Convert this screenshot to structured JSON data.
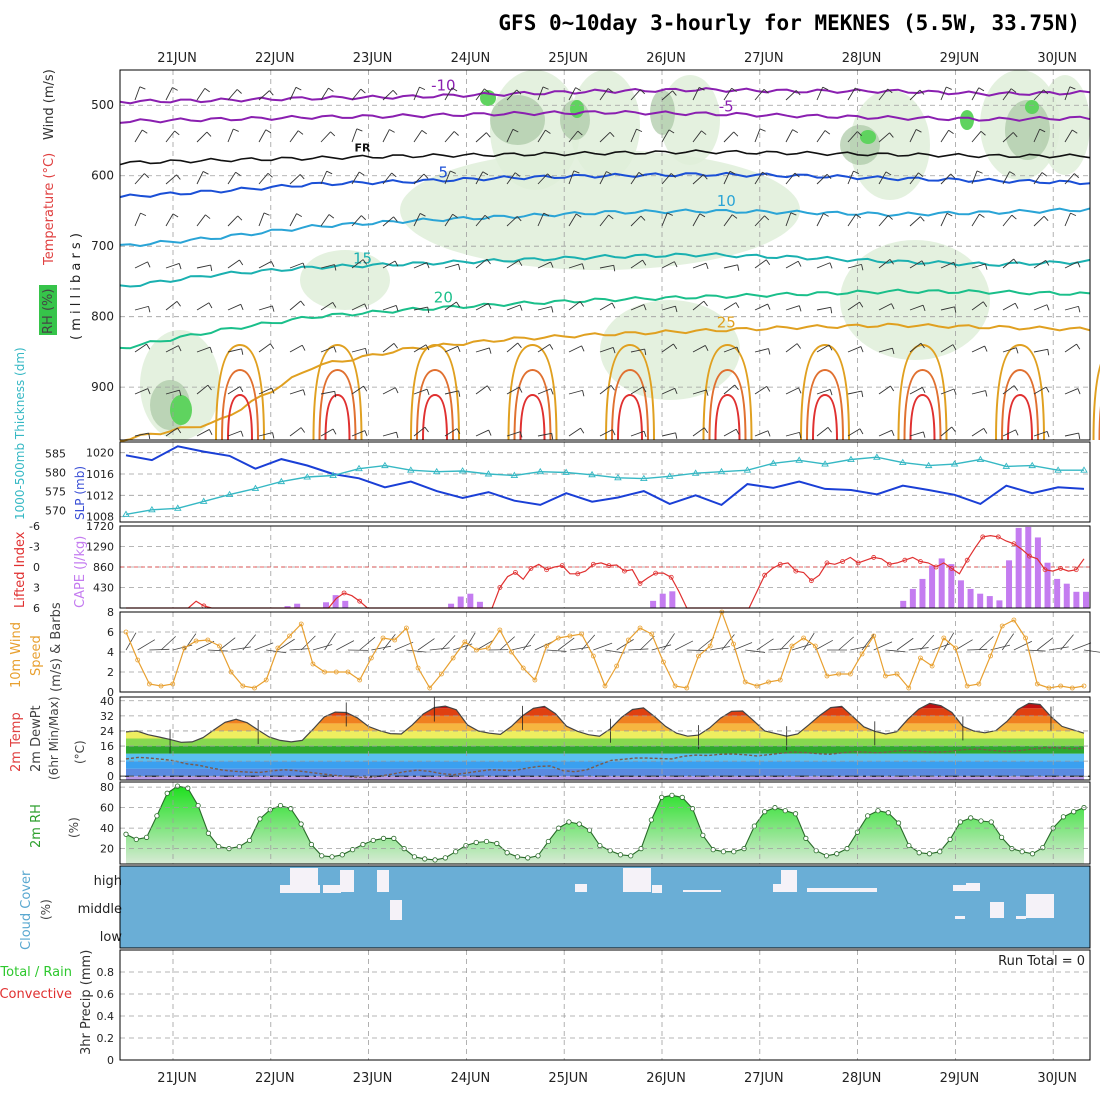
{
  "title": "GFS 0~10day 3-hourly for MEKNES (5.5W, 33.75N)",
  "dates": [
    "21JUN",
    "22JUN",
    "23JUN",
    "24JUN",
    "25JUN",
    "26JUN",
    "27JUN",
    "28JUN",
    "29JUN",
    "30JUN"
  ],
  "colors": {
    "frame": "#000000",
    "grid": "#9e9e9e",
    "cape_bar": "#c47cf0",
    "lifted_line": "#e03030",
    "slp_line": "#1a3fd6",
    "thickness_line": "#36b8c4",
    "wind_line": "#e8a030",
    "rh_fill": "#2ec82e",
    "cloud_bg": "#6aaed6",
    "cloud_white": "#f5f2f8"
  },
  "labels": {
    "rh_key": "RH (%)",
    "temperature": "Temperature (°C)",
    "wind": "Wind (m/s)",
    "pressure": "( m i l l i b a r s )",
    "thickness": "1000-500mb Thickness (dm)",
    "slp": "SLP (mb)",
    "lifted": "Lifted Index",
    "cape": "CAPE (J/kg)",
    "wind10_a": "10m Wind",
    "wind10_b": "Speed",
    "wind10_c": "(m/s) & Barbs",
    "temp_a": "2m Temp",
    "temp_b": "2m DewPt",
    "temp_c": "(6hr Min/Max)",
    "temp_unit": "(°C)",
    "rh2m": "2m RH",
    "rh2m_unit": "(%)",
    "cloud": "Cloud Cover",
    "cloud_unit": "(%)",
    "precip_a": "Total / Rain",
    "precip_b": "Convective",
    "precip_c": "3hr Precip (mm)",
    "run_total": "Run Total = 0"
  },
  "chart_data": [
    {
      "type": "contour",
      "panel": "upper-air",
      "yaxis": "Pressure (millibars)",
      "yticks": [
        500,
        600,
        700,
        800,
        900
      ],
      "ylim": [
        450,
        975
      ],
      "isotherm_labels": [
        "-10",
        "-5",
        "FR",
        "5",
        "10",
        "15",
        "20",
        "25"
      ],
      "isotherms": [
        {
          "label": "-10",
          "p": [
            495,
            493,
            490,
            488,
            484,
            480,
            478,
            480,
            480,
            484,
            482
          ]
        },
        {
          "label": "-5",
          "p": [
            523,
            520,
            517,
            515,
            512,
            510,
            512,
            515,
            518,
            520,
            518
          ]
        },
        {
          "label": "FR",
          "p": [
            582,
            578,
            575,
            572,
            570,
            568,
            566,
            568,
            570,
            572,
            572
          ]
        },
        {
          "label": "5",
          "p": [
            630,
            622,
            612,
            608,
            603,
            600,
            598,
            600,
            604,
            607,
            610
          ]
        },
        {
          "label": "10",
          "p": [
            700,
            688,
            672,
            664,
            658,
            652,
            650,
            652,
            655,
            652,
            648
          ]
        },
        {
          "label": "15",
          "p": [
            758,
            740,
            730,
            725,
            720,
            715,
            712,
            716,
            722,
            726,
            722
          ]
        },
        {
          "label": "20",
          "p": [
            845,
            820,
            800,
            790,
            782,
            776,
            772,
            768,
            764,
            765,
            768
          ]
        },
        {
          "label": "25",
          "p": [
            975,
            950,
            870,
            845,
            832,
            825,
            820,
            815,
            812,
            815,
            818
          ]
        }
      ]
    },
    {
      "type": "line",
      "panel": "slp-thickness",
      "series": [
        {
          "name": "SLP (mb)",
          "axis": "right",
          "yticks": [
            1008,
            1012,
            1016,
            1020
          ],
          "values": [
            1019.5,
            1018.6,
            1021.2,
            1020.2,
            1019.4,
            1017.0,
            1018.8,
            1017.6,
            1016.0,
            1015.2,
            1013.5,
            1014.6,
            1012.8,
            1011.5,
            1012.6,
            1011.0,
            1010.2,
            1012.4,
            1010.8,
            1011.6,
            1012.8,
            1010.4,
            1012.0,
            1010.2,
            1014.1,
            1013.4,
            1014.6,
            1013.2,
            1013.0,
            1012.2,
            1013.8,
            1013.0,
            1012.1,
            1010.4,
            1013.8,
            1012.4,
            1013.5,
            1013.2
          ]
        },
        {
          "name": "1000-500mb Thickness (dm)",
          "axis": "left",
          "yticks": [
            570,
            575,
            580,
            585
          ],
          "values": [
            569.0,
            570.2,
            570.6,
            572.4,
            574.2,
            575.8,
            577.6,
            578.8,
            579.2,
            581.0,
            581.8,
            580.6,
            580.2,
            580.4,
            579.6,
            579.2,
            580.2,
            580.0,
            579.4,
            578.6,
            578.4,
            579.0,
            579.8,
            580.2,
            580.6,
            582.4,
            583.2,
            582.2,
            583.4,
            584.0,
            582.6,
            581.8,
            582.2,
            583.4,
            581.6,
            581.8,
            580.6,
            580.6
          ]
        }
      ]
    },
    {
      "type": "bar",
      "panel": "cape-lifted",
      "cape_ticks": [
        430,
        860,
        1290,
        1720
      ],
      "lifted_ticks": [
        "-6",
        "-3",
        "0",
        "3",
        "6"
      ],
      "cape": [
        0,
        0,
        0,
        0,
        0,
        0,
        0,
        0,
        0,
        0,
        0,
        0,
        0,
        0,
        0,
        0,
        0,
        40,
        90,
        0,
        0,
        120,
        270,
        150,
        0,
        0,
        0,
        0,
        0,
        0,
        0,
        0,
        0,
        0,
        90,
        240,
        300,
        130,
        0,
        0,
        0,
        0,
        0,
        0,
        0,
        0,
        0,
        0,
        0,
        0,
        0,
        0,
        0,
        0,
        0,
        150,
        300,
        350,
        0,
        0,
        0,
        0,
        0,
        0,
        0,
        0,
        0,
        0,
        0,
        0,
        0,
        0,
        0,
        0,
        0,
        0,
        0,
        0,
        0,
        0,
        0,
        150,
        400,
        610,
        890,
        1040,
        920,
        580,
        400,
        300,
        250,
        160,
        1000,
        1680,
        1700,
        1480,
        950,
        610,
        510,
        340,
        340
      ],
      "lifted": [
        6,
        6,
        6,
        6,
        6,
        6,
        6,
        6,
        6,
        5.0,
        5.7,
        6,
        6,
        6,
        6,
        6,
        6,
        6,
        6,
        6,
        6,
        6,
        6,
        6,
        6,
        6,
        6,
        4.6,
        3.8,
        4.2,
        5.0,
        6,
        6,
        6,
        6,
        6,
        6,
        6,
        6,
        6,
        6,
        6,
        6,
        6,
        6,
        6,
        6,
        6,
        3.0,
        1.4,
        0.8,
        1.8,
        0.2,
        -0.4,
        0.4,
        0.0,
        -0.2,
        1.0,
        1.0,
        0.6,
        -0.4,
        -0.6,
        -0.2,
        -0.3,
        0.6,
        0.4,
        2.4,
        1.6,
        0.9,
        0.9,
        1.5,
        3.6,
        6,
        6,
        6,
        6,
        6,
        6,
        6,
        6,
        6,
        3.6,
        1.2,
        0.2,
        -0.4,
        -0.6,
        0.6,
        0.8,
        2.0,
        1.2,
        -0.6,
        -0.4,
        -0.8,
        -1.4,
        -0.6,
        -1.0,
        -1.4,
        -1.2,
        -0.4,
        -0.6,
        -1.0,
        -1.4,
        -0.8,
        -0.6,
        0.0,
        -0.6,
        0.2,
        1.0,
        -1.0,
        -2.8,
        -4.4,
        -4.6,
        -4.4,
        -3.8,
        -3.4,
        -2.6,
        -1.6,
        -1.2,
        0.4,
        0.6,
        0.2,
        0.6,
        0.4,
        -1.2
      ]
    },
    {
      "type": "line",
      "panel": "wind10m",
      "yaxis": "10m Wind Speed (m/s)",
      "yticks": [
        0,
        2,
        4,
        6,
        8
      ],
      "ylim": [
        0,
        8
      ],
      "values": [
        6.0,
        3.2,
        0.8,
        0.6,
        0.8,
        4.4,
        5.1,
        5.2,
        4.6,
        2.0,
        0.6,
        0.4,
        1.2,
        4.4,
        5.6,
        6.8,
        2.8,
        2.0,
        2.0,
        2.0,
        1.2,
        3.4,
        5.4,
        5.2,
        6.4,
        2.4,
        0.4,
        1.8,
        3.4,
        5.0,
        4.2,
        4.4,
        6.2,
        4.0,
        2.4,
        1.2,
        4.6,
        5.4,
        5.6,
        5.8,
        3.6,
        0.6,
        2.6,
        5.2,
        6.4,
        5.8,
        3.0,
        0.6,
        0.4,
        3.6,
        4.6,
        8.0,
        4.8,
        1.0,
        0.6,
        1.0,
        1.2,
        4.6,
        5.4,
        4.6,
        1.6,
        1.8,
        1.8,
        3.8,
        5.6,
        1.6,
        1.8,
        0.4,
        3.4,
        2.6,
        5.4,
        4.4,
        0.6,
        0.8,
        3.6,
        6.6,
        7.2,
        5.4,
        0.8,
        0.4,
        0.6,
        0.4,
        0.6
      ]
    },
    {
      "type": "area",
      "panel": "temperature",
      "yaxis": "2m Temp / DewPt (°C)",
      "yticks": [
        0,
        8,
        16,
        24,
        32,
        40
      ],
      "ylim": [
        -2,
        42
      ],
      "temp": [
        23.5,
        24.0,
        22.0,
        20.8,
        19.5,
        18.0,
        18.2,
        20.5,
        24.6,
        28.6,
        30.2,
        28.4,
        24.5,
        20.8,
        19.0,
        18.2,
        19.0,
        25.0,
        31.4,
        34.0,
        33.8,
        31.0,
        26.4,
        24.2,
        22.6,
        22.4,
        27.2,
        33.0,
        36.4,
        37.2,
        35.2,
        27.2,
        24.0,
        22.8,
        22.2,
        26.4,
        32.0,
        36.0,
        37.0,
        33.2,
        26.5,
        23.8,
        22.0,
        21.2,
        25.2,
        31.2,
        35.4,
        36.2,
        31.6,
        26.4,
        22.8,
        21.2,
        21.8,
        25.6,
        30.8,
        34.4,
        34.6,
        29.4,
        24.0,
        22.6,
        21.2,
        22.4,
        27.2,
        32.2,
        36.4,
        37.0,
        31.6,
        26.2,
        23.8,
        22.4,
        23.6,
        30.2,
        35.6,
        38.6,
        37.4,
        33.8,
        26.4,
        24.0,
        23.0,
        24.2,
        29.0,
        35.4,
        38.6,
        38.0,
        31.6,
        26.4,
        24.6,
        22.8
      ],
      "dewpoint": [
        9.2,
        10.0,
        9.6,
        9.0,
        8.2,
        6.6,
        5.8,
        4.4,
        3.2,
        2.6,
        2.2,
        2.0,
        2.8,
        3.4,
        3.0,
        2.2,
        1.4,
        0.6,
        0.0,
        -0.4,
        -0.8,
        0.2,
        1.2,
        2.4,
        3.2,
        2.6,
        1.4,
        0.8,
        1.6,
        2.6,
        3.4,
        3.2,
        3.0,
        4.2,
        5.2,
        5.4,
        3.0,
        2.4,
        3.4,
        6.0,
        8.4,
        9.0,
        9.6,
        9.6,
        9.4,
        9.2,
        10.6,
        11.2,
        11.0,
        11.6,
        11.8,
        11.4,
        10.8,
        11.4,
        12.2,
        12.8,
        12.6,
        12.0,
        11.6,
        12.4,
        13.0,
        12.8,
        12.4,
        13.0,
        13.6,
        13.4,
        13.0,
        12.8,
        13.2,
        14.0,
        14.4,
        14.0,
        13.4,
        13.2,
        13.8,
        14.6,
        15.2,
        15.0,
        14.6,
        14.8
      ],
      "zero_line": 0
    },
    {
      "type": "area",
      "panel": "rh2m",
      "yaxis": "2m RH (%)",
      "yticks": [
        20,
        40,
        60,
        80
      ],
      "ylim": [
        5,
        85
      ],
      "values": [
        34,
        29,
        31,
        52,
        74,
        81,
        79,
        62,
        35,
        22,
        20,
        22,
        28,
        49,
        58,
        62,
        59,
        44,
        24,
        13,
        12,
        14,
        19,
        24,
        28,
        30,
        30,
        20,
        12,
        10,
        9,
        11,
        17,
        23,
        26,
        27,
        25,
        16,
        12,
        11,
        13,
        27,
        40,
        46,
        44,
        38,
        23,
        18,
        14,
        13,
        20,
        48,
        70,
        72,
        70,
        59,
        33,
        19,
        17,
        17,
        20,
        42,
        56,
        60,
        57,
        54,
        30,
        18,
        13,
        15,
        20,
        36,
        52,
        57,
        55,
        45,
        23,
        16,
        15,
        17,
        29,
        46,
        50,
        47,
        46,
        31,
        20,
        17,
        15,
        21,
        40,
        51,
        56,
        60
      ]
    },
    {
      "type": "heatmap",
      "panel": "cloud-cover",
      "levels": [
        "high",
        "middle",
        "low"
      ]
    },
    {
      "type": "bar",
      "panel": "precipitation",
      "yaxis": "3hr Precip (mm)",
      "yticks": [
        "0",
        "0.2",
        "0.4",
        "0.6",
        "0.8"
      ],
      "ylim": [
        0,
        1
      ],
      "values": []
    }
  ]
}
